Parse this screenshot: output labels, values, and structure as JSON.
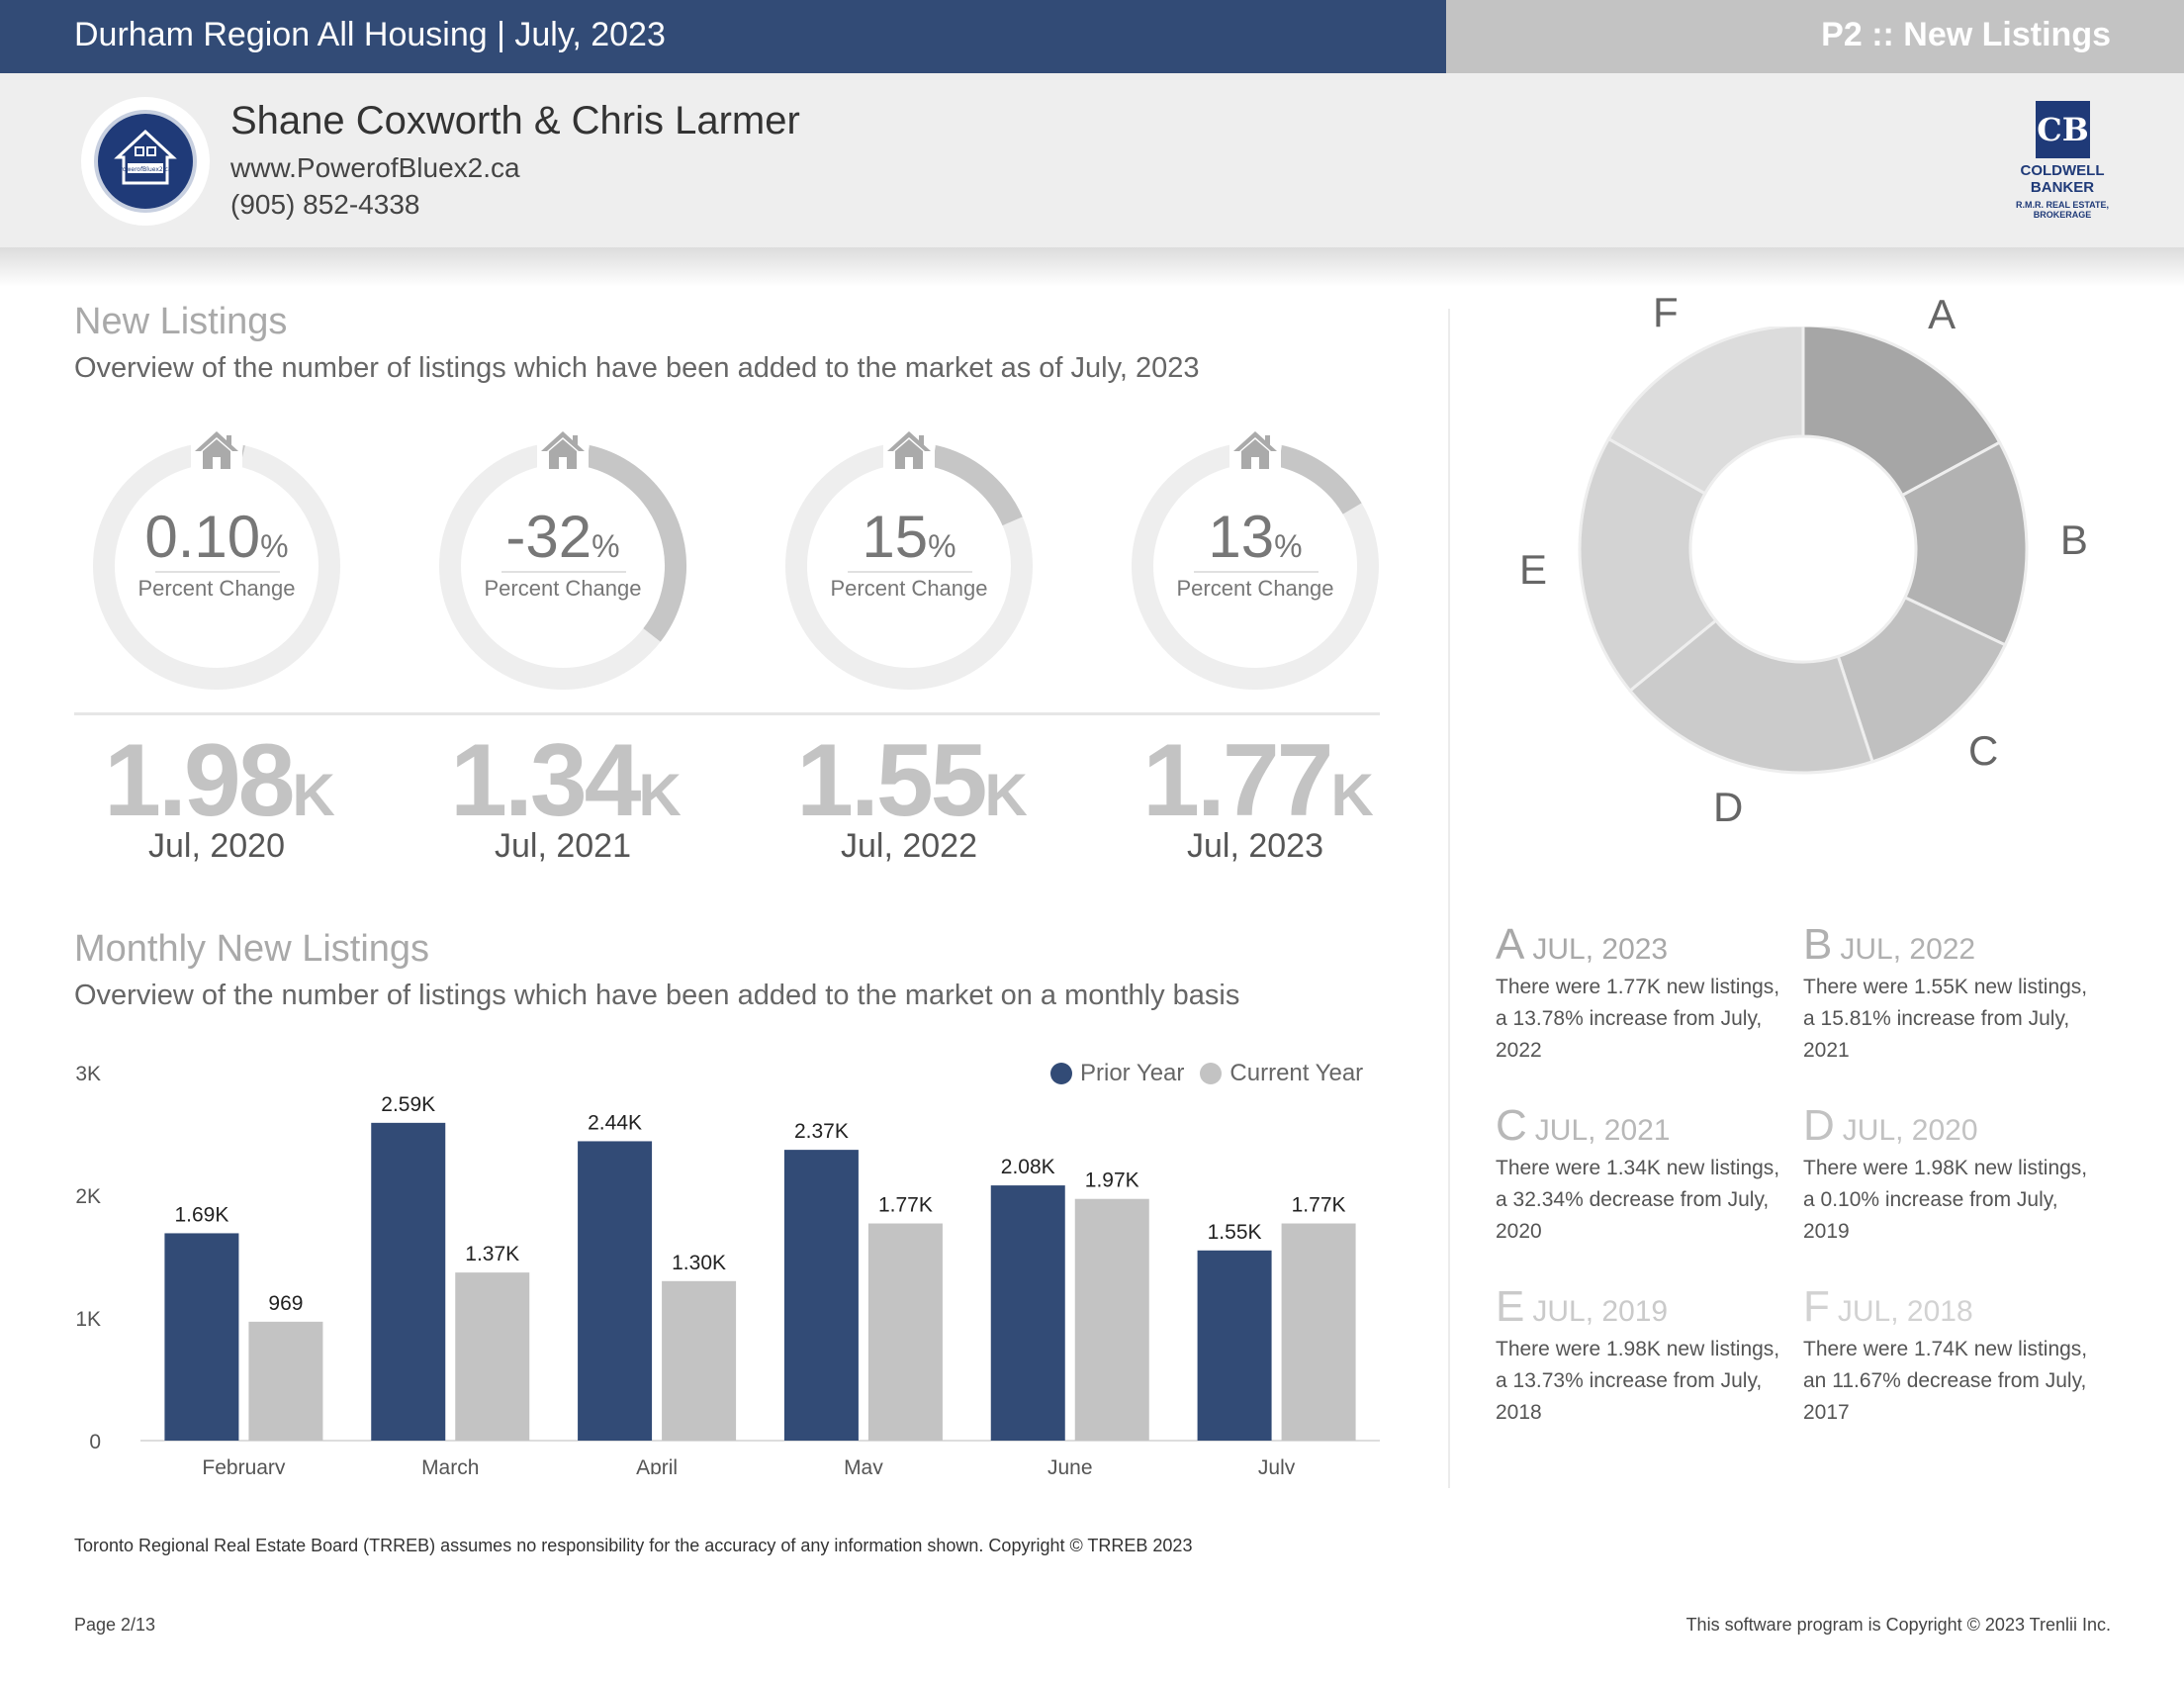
{
  "header": {
    "title": "Durham Region All Housing | July, 2023",
    "page_label": "P2 :: New Listings"
  },
  "agent": {
    "name": "Shane Coxworth & Chris Larmer",
    "website": "www.PowerofBluex2.ca",
    "phone": "(905) 852-4338",
    "logo_text": "PowerofBluex2.ca",
    "brokerage": {
      "mark": "CB",
      "name_line1": "COLDWELL",
      "name_line2": "BANKER",
      "sub_line1": "R.M.R. REAL ESTATE,",
      "sub_line2": "BROKERAGE"
    }
  },
  "new_listings": {
    "title": "New Listings",
    "subtitle": "Overview of the number of listings which have been added to the market as of July, 2023",
    "gauges": [
      {
        "value": "0.10",
        "unit": "%",
        "label": "Percent Change",
        "fill_fraction": 0.001
      },
      {
        "value": "-32",
        "unit": "%",
        "label": "Percent Change",
        "fill_fraction": 0.32
      },
      {
        "value": "15",
        "unit": "%",
        "label": "Percent Change",
        "fill_fraction": 0.15
      },
      {
        "value": "13",
        "unit": "%",
        "label": "Percent Change",
        "fill_fraction": 0.13
      }
    ],
    "totals": [
      {
        "value": "1.98",
        "unit": "K",
        "year": "Jul, 2020"
      },
      {
        "value": "1.34",
        "unit": "K",
        "year": "Jul, 2021"
      },
      {
        "value": "1.55",
        "unit": "K",
        "year": "Jul, 2022"
      },
      {
        "value": "1.77",
        "unit": "K",
        "year": "Jul, 2023"
      }
    ]
  },
  "donut": {
    "segments": [
      {
        "label": "A",
        "value": 1.77,
        "color": "#a6a6a6"
      },
      {
        "label": "B",
        "value": 1.55,
        "color": "#b2b2b2"
      },
      {
        "label": "C",
        "value": 1.34,
        "color": "#c0c0c0"
      },
      {
        "label": "D",
        "value": 1.98,
        "color": "#cbcbcb"
      },
      {
        "label": "E",
        "value": 1.98,
        "color": "#d3d3d3"
      },
      {
        "label": "F",
        "value": 1.74,
        "color": "#dcdcdc"
      }
    ],
    "legend": [
      {
        "letter": "A",
        "period": "JUL, 2023",
        "text": "There were 1.77K new listings, a 13.78% increase from July, 2022",
        "color": "#a8a8a8"
      },
      {
        "letter": "B",
        "period": "JUL, 2022",
        "text": "There were 1.55K new listings, a 15.81% increase from July, 2021",
        "color": "#b0b0b0"
      },
      {
        "letter": "C",
        "period": "JUL, 2021",
        "text": "There were 1.34K new listings, a 32.34% decrease from July, 2020",
        "color": "#b8b8b8"
      },
      {
        "letter": "D",
        "period": "JUL, 2020",
        "text": "There were 1.98K new listings, a 0.10% increase from July, 2019",
        "color": "#c2c2c2"
      },
      {
        "letter": "E",
        "period": "JUL, 2019",
        "text": "There were 1.98K new listings, a 13.73% increase from July, 2018",
        "color": "#cacaca"
      },
      {
        "letter": "F",
        "period": "JUL, 2018",
        "text": "There were 1.74K new listings, an 11.67% decrease from July, 2017",
        "color": "#d2d2d2"
      }
    ]
  },
  "monthly": {
    "title": "Monthly New Listings",
    "subtitle": "Overview of the number of listings which have been added to the market on a monthly basis"
  },
  "chart_data": {
    "type": "bar",
    "title": "Monthly New Listings",
    "categories": [
      "February",
      "March",
      "April",
      "May",
      "June",
      "July"
    ],
    "series": [
      {
        "name": "Prior Year",
        "color": "#324b76",
        "values": [
          1690,
          2590,
          2440,
          2370,
          2080,
          1550
        ],
        "labels": [
          "1.69K",
          "2.59K",
          "2.44K",
          "2.37K",
          "2.08K",
          "1.55K"
        ]
      },
      {
        "name": "Current Year",
        "color": "#c3c3c3",
        "values": [
          969,
          1370,
          1300,
          1770,
          1970,
          1770
        ],
        "labels": [
          "969",
          "1.37K",
          "1.30K",
          "1.77K",
          "1.97K",
          "1.77K"
        ]
      }
    ],
    "ylim": [
      0,
      3000
    ],
    "yticks": [
      0,
      1000,
      2000,
      3000
    ],
    "ytick_labels": [
      "0",
      "1K",
      "2K",
      "3K"
    ],
    "legend_position": "top-right",
    "grid": false
  },
  "footer": {
    "disclaimer": "Toronto Regional Real Estate Board (TRREB) assumes no responsibility for the accuracy of any information shown. Copyright © TRREB 2023",
    "page": "Page 2/13",
    "copyright": "This software program is Copyright © 2023 Trenlii Inc."
  }
}
